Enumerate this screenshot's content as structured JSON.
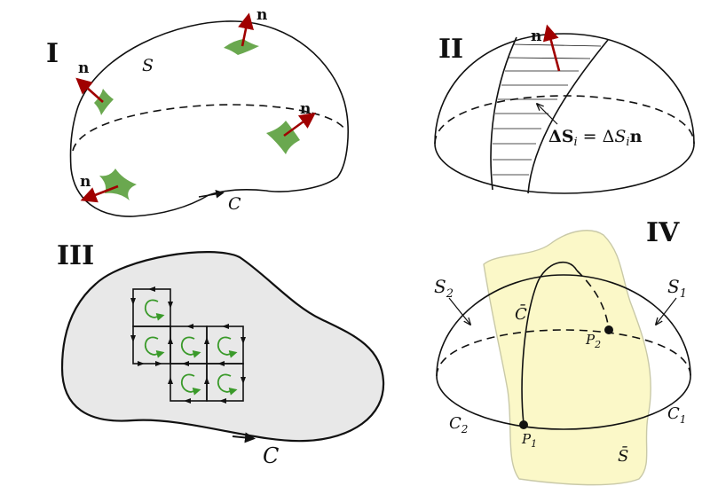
{
  "panels": {
    "p1": {
      "id": "I",
      "normal": "n",
      "surface": "S",
      "curve": "C",
      "colors": {
        "patch": "#6aa84f",
        "arrow": "#a00000"
      }
    },
    "p2": {
      "id": "II",
      "normal": "n",
      "element_lhs": "ΔS",
      "element_sub": "i",
      "element_eq": " = Δ",
      "element_scalar": "S",
      "element_sub2": "i",
      "element_n": "n"
    },
    "p3": {
      "id": "III",
      "curve": "C",
      "colors": {
        "fill": "#e8e8e8",
        "circulation": "#3a9a2a"
      }
    },
    "p4": {
      "id": "IV",
      "s1": "S",
      "s1_sub": "1",
      "s2": "S",
      "s2_sub": "2",
      "c1": "C",
      "c1_sub": "1",
      "c2": "C",
      "c2_sub": "2",
      "cbar": "C̄",
      "sbar": "S̄",
      "p1": "P",
      "p1_sub": "1",
      "p2": "P",
      "p2_sub": "2",
      "colors": {
        "sheet": "#fbf8c8",
        "sheet_edge": "#c9c9a8"
      }
    }
  }
}
